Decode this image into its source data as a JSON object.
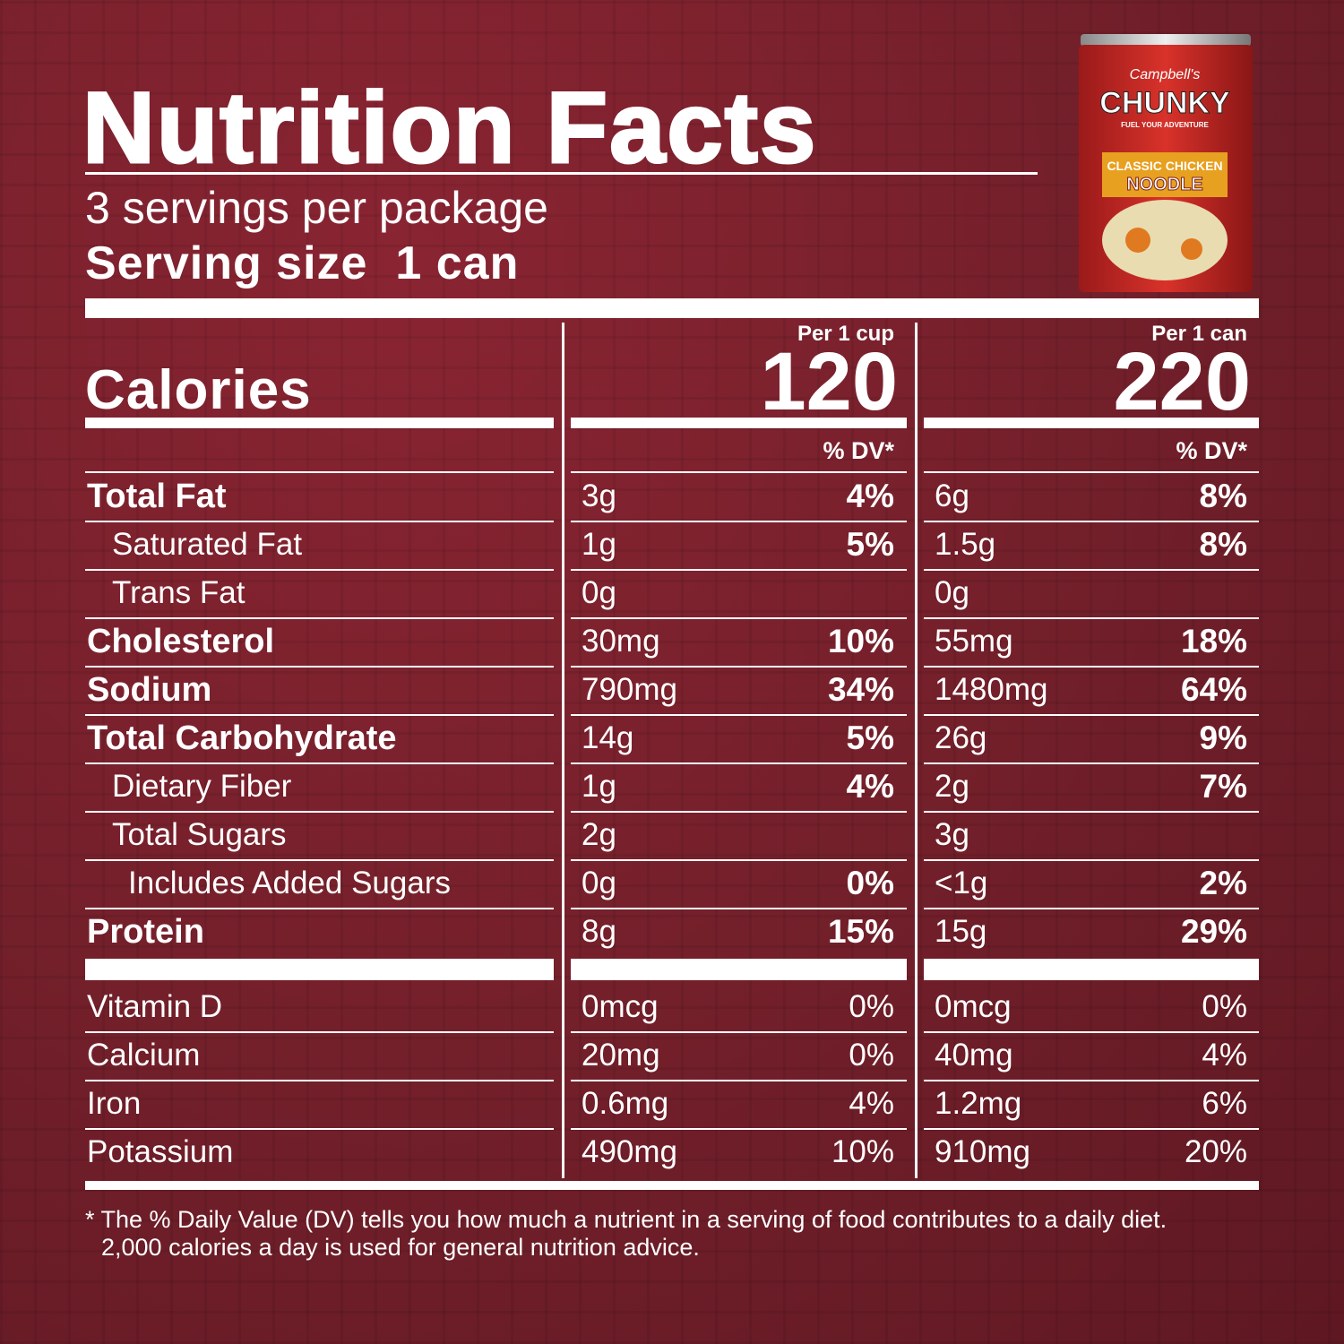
{
  "title": "Nutrition Facts",
  "servings": "3 servings per package",
  "serving_size": {
    "label": "Serving size",
    "value": "1 can"
  },
  "calories": {
    "label": "Calories"
  },
  "columns": [
    {
      "header": "Per 1 cup",
      "calories": "120",
      "dv_header": "% DV*"
    },
    {
      "header": "Per 1 can",
      "calories": "220",
      "dv_header": "% DV*"
    }
  ],
  "nutrients": [
    {
      "label": "Total Fat",
      "bold": true,
      "indent": 0,
      "cells": [
        [
          "3g",
          "4%"
        ],
        [
          "6g",
          "8%"
        ]
      ]
    },
    {
      "label": "Saturated Fat",
      "bold": false,
      "indent": 1,
      "cells": [
        [
          "1g",
          "5%"
        ],
        [
          "1.5g",
          "8%"
        ]
      ]
    },
    {
      "label": "Trans Fat",
      "bold": false,
      "indent": 1,
      "cells": [
        [
          "0g",
          null
        ],
        [
          "0g",
          null
        ]
      ]
    },
    {
      "label": "Cholesterol",
      "bold": true,
      "indent": 0,
      "cells": [
        [
          "30mg",
          "10%"
        ],
        [
          "55mg",
          "18%"
        ]
      ]
    },
    {
      "label": "Sodium",
      "bold": true,
      "indent": 0,
      "cells": [
        [
          "790mg",
          "34%"
        ],
        [
          "1480mg",
          "64%"
        ]
      ]
    },
    {
      "label": "Total Carbohydrate",
      "bold": true,
      "indent": 0,
      "cells": [
        [
          "14g",
          "5%"
        ],
        [
          "26g",
          "9%"
        ]
      ]
    },
    {
      "label": "Dietary Fiber",
      "bold": false,
      "indent": 1,
      "cells": [
        [
          "1g",
          "4%"
        ],
        [
          "2g",
          "7%"
        ]
      ]
    },
    {
      "label": "Total Sugars",
      "bold": false,
      "indent": 1,
      "cells": [
        [
          "2g",
          null
        ],
        [
          "3g",
          null
        ]
      ]
    },
    {
      "label": "Includes Added Sugars",
      "bold": false,
      "indent": 2,
      "cells": [
        [
          "0g",
          "0%"
        ],
        [
          "<1g",
          "2%"
        ]
      ]
    },
    {
      "label": "Protein",
      "bold": true,
      "indent": 0,
      "cells": [
        [
          "8g",
          "15%"
        ],
        [
          "15g",
          "29%"
        ]
      ]
    }
  ],
  "vitamins": [
    {
      "label": "Vitamin D",
      "cells": [
        [
          "0mcg",
          "0%"
        ],
        [
          "0mcg",
          "0%"
        ]
      ]
    },
    {
      "label": "Calcium",
      "cells": [
        [
          "20mg",
          "0%"
        ],
        [
          "40mg",
          "4%"
        ]
      ]
    },
    {
      "label": "Iron",
      "cells": [
        [
          "0.6mg",
          "4%"
        ],
        [
          "1.2mg",
          "6%"
        ]
      ]
    },
    {
      "label": "Potassium",
      "cells": [
        [
          "490mg",
          "10%"
        ],
        [
          "910mg",
          "20%"
        ]
      ]
    }
  ],
  "footnote": [
    "* The % Daily Value (DV) tells you how much a nutrient in a serving of food contributes to a daily diet.",
    "2,000 calories a day is used for general nutrition advice."
  ],
  "product": {
    "brand": "Campbell's",
    "line": "CHUNKY",
    "tagline": "FUEL YOUR ADVENTURE",
    "flavor": "CLASSIC CHICKEN",
    "variety": "NOODLE"
  }
}
